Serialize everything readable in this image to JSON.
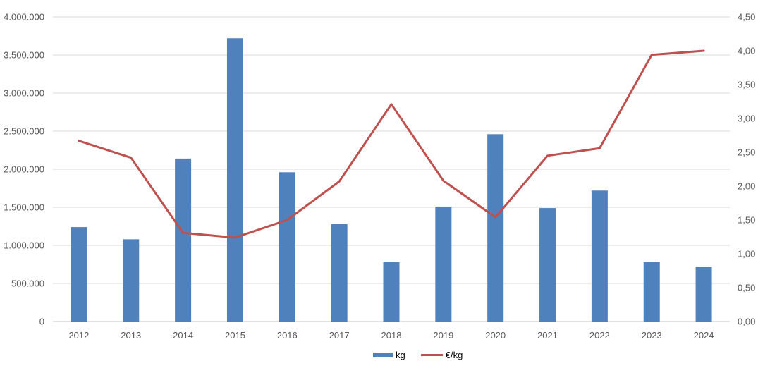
{
  "chart_data": {
    "type": "combo_bar_line",
    "title": "",
    "categories": [
      "2012",
      "2013",
      "2014",
      "2015",
      "2016",
      "2017",
      "2018",
      "2019",
      "2020",
      "2021",
      "2022",
      "2023",
      "2024"
    ],
    "series": [
      {
        "name": "kg",
        "type": "bar",
        "axis": "left",
        "color": "#4f81bd",
        "values": [
          1240000,
          1080000,
          2140000,
          3720000,
          1960000,
          1280000,
          780000,
          1510000,
          2460000,
          1490000,
          1720000,
          780000,
          720000
        ]
      },
      {
        "name": "€/kg",
        "type": "line",
        "axis": "right",
        "color": "#c0504d",
        "values": [
          2.67,
          2.42,
          1.31,
          1.24,
          1.5,
          2.07,
          3.21,
          2.08,
          1.54,
          2.45,
          2.56,
          3.94,
          4.0
        ]
      }
    ],
    "left_axis": {
      "min": 0,
      "max": 4000000,
      "step": 500000,
      "tick_labels": [
        "0",
        "500.000",
        "1.000.000",
        "1.500.000",
        "2.000.000",
        "2.500.000",
        "3.000.000",
        "3.500.000",
        "4.000.000"
      ]
    },
    "right_axis": {
      "min": 0,
      "max": 4.5,
      "step": 0.5,
      "tick_labels": [
        "0,00",
        "0,50",
        "1,00",
        "1,50",
        "2,00",
        "2,50",
        "3,00",
        "3,50",
        "4,00",
        "4,50"
      ]
    },
    "grid": true,
    "legend_position": "bottom",
    "colors": {
      "grid": "#d9d9d9",
      "axis_line": "#c6c6c6",
      "text": "#595959",
      "background": "#ffffff"
    }
  },
  "legend": {
    "items": [
      {
        "label": "kg"
      },
      {
        "label": "€/kg"
      }
    ]
  }
}
